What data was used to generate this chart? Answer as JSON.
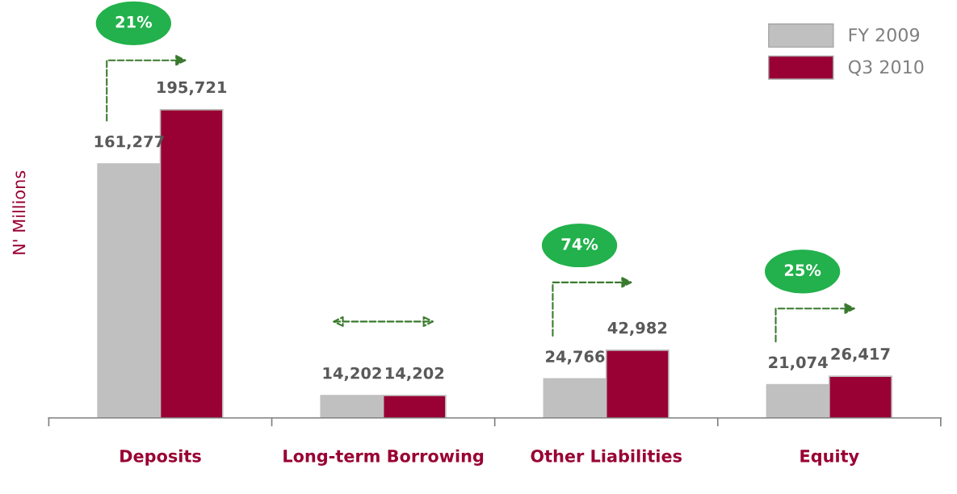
{
  "chart_data": {
    "type": "bar",
    "ylabel": "N' Millions",
    "categories": [
      "Deposits",
      "Long-term Borrowing",
      "Other Liabilities",
      "Equity"
    ],
    "series": [
      {
        "name": "FY 2009",
        "color": "#c0c0c0",
        "values": [
          161277,
          14202,
          24766,
          21074
        ],
        "value_labels": [
          "161,277",
          "14,202",
          "24,766",
          "21,074"
        ]
      },
      {
        "name": "Q3 2010",
        "color": "#990033",
        "values": [
          195721,
          14202,
          42982,
          26417
        ],
        "value_labels": [
          "195,721",
          "14,202",
          "42,982",
          "26,417"
        ]
      }
    ],
    "legend": "top right",
    "grid": false,
    "annotations": [
      "21%",
      "74%",
      "25%"
    ]
  }
}
